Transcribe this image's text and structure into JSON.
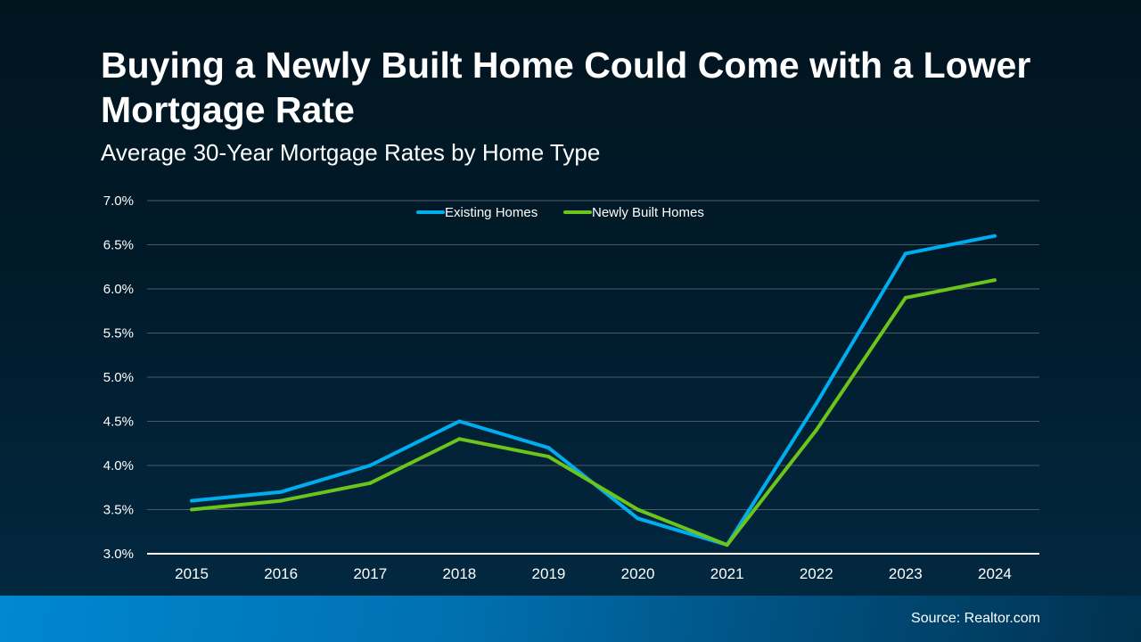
{
  "title": "Buying a Newly Built Home Could Come with a Lower Mortgage Rate",
  "subtitle": "Average 30-Year Mortgage Rates by Home Type",
  "source": "Source: Realtor.com",
  "chart_data": {
    "type": "line",
    "categories": [
      "2015",
      "2016",
      "2017",
      "2018",
      "2019",
      "2020",
      "2021",
      "2022",
      "2023",
      "2024"
    ],
    "series": [
      {
        "name": "Existing Homes",
        "color": "#00aeef",
        "values": [
          3.6,
          3.7,
          4.0,
          4.5,
          4.2,
          3.4,
          3.1,
          4.7,
          6.4,
          6.6
        ]
      },
      {
        "name": "Newly Built Homes",
        "color": "#6cc51b",
        "values": [
          3.5,
          3.6,
          3.8,
          4.3,
          4.1,
          3.5,
          3.1,
          4.4,
          5.9,
          6.1
        ]
      }
    ],
    "ylim": [
      3.0,
      7.0
    ],
    "yticks": [
      "3.0%",
      "3.5%",
      "4.0%",
      "4.5%",
      "5.0%",
      "5.5%",
      "6.0%",
      "6.5%",
      "7.0%"
    ],
    "grid": true,
    "legend": "top-center",
    "xlabel": "",
    "ylabel": ""
  }
}
